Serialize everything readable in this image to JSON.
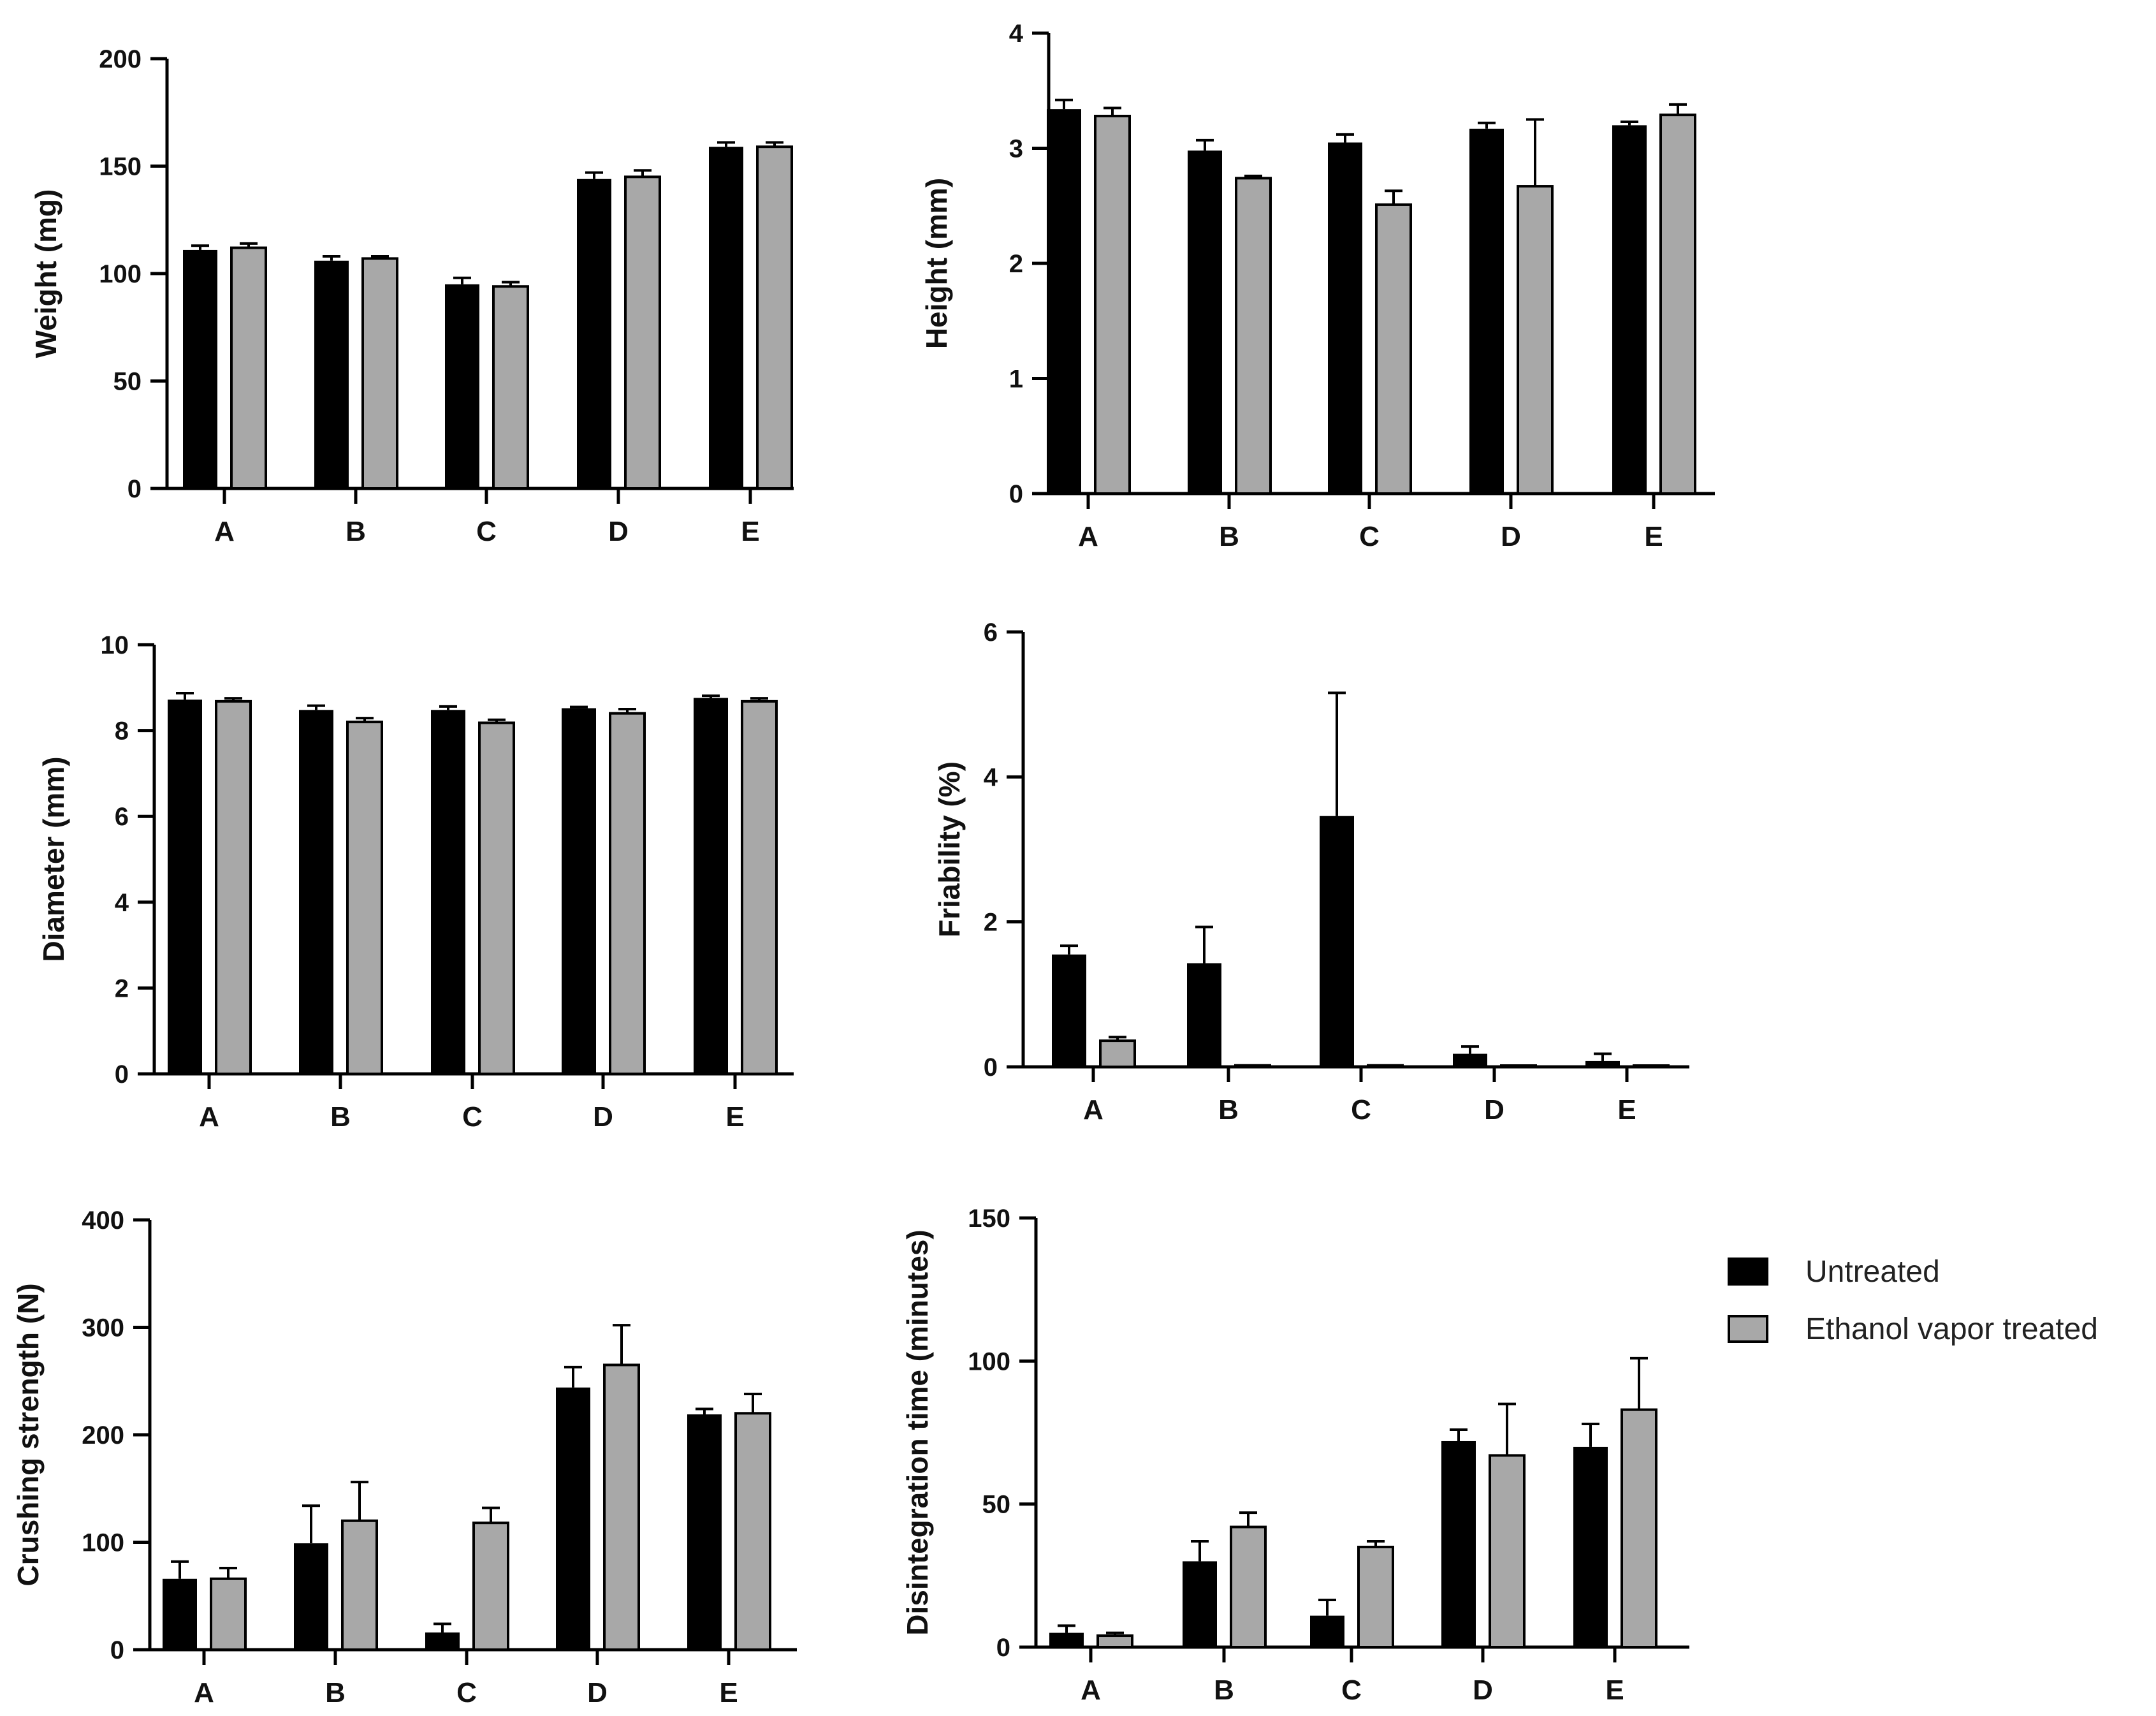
{
  "colors": {
    "untreated": "#000000",
    "treated": "#a8a8a8",
    "axis": "#000000"
  },
  "legend": {
    "untreated_label": "Untreated",
    "treated_label": "Ethanol vapor treated"
  },
  "chart_data": [
    {
      "type": "bar",
      "id": "weight",
      "ylabel": "Weight (mg)",
      "ylim": [
        0,
        200
      ],
      "yticks": [
        0,
        50,
        100,
        150,
        200
      ],
      "categories": [
        "A",
        "B",
        "C",
        "D",
        "E"
      ],
      "series": [
        {
          "name": "Untreated",
          "values": [
            111,
            106,
            95,
            144,
            159
          ],
          "errors": [
            2,
            2,
            3,
            3,
            2
          ]
        },
        {
          "name": "Ethanol vapor treated",
          "values": [
            112,
            107,
            94,
            145,
            159
          ],
          "errors": [
            2,
            1,
            2,
            3,
            2
          ]
        }
      ]
    },
    {
      "type": "bar",
      "id": "height",
      "ylabel": "Height (mm)",
      "ylim": [
        0,
        4
      ],
      "yticks": [
        0,
        1,
        2,
        3,
        4
      ],
      "categories": [
        "A",
        "B",
        "C",
        "D",
        "E"
      ],
      "series": [
        {
          "name": "Untreated",
          "values": [
            3.34,
            2.98,
            3.05,
            3.17,
            3.2
          ],
          "errors": [
            0.08,
            0.09,
            0.07,
            0.05,
            0.03
          ]
        },
        {
          "name": "Ethanol vapor treated",
          "values": [
            3.28,
            2.74,
            2.51,
            2.67,
            3.29
          ],
          "errors": [
            0.07,
            0.02,
            0.12,
            0.58,
            0.09
          ]
        }
      ]
    },
    {
      "type": "bar",
      "id": "diameter",
      "ylabel": "Diameter (mm)",
      "ylim": [
        0,
        10
      ],
      "yticks": [
        0,
        2,
        4,
        6,
        8,
        10
      ],
      "categories": [
        "A",
        "B",
        "C",
        "D",
        "E"
      ],
      "series": [
        {
          "name": "Untreated",
          "values": [
            8.72,
            8.48,
            8.48,
            8.52,
            8.76
          ],
          "errors": [
            0.15,
            0.1,
            0.08,
            0.03,
            0.05
          ]
        },
        {
          "name": "Ethanol vapor treated",
          "values": [
            8.68,
            8.2,
            8.18,
            8.4,
            8.68
          ],
          "errors": [
            0.07,
            0.09,
            0.07,
            0.1,
            0.07
          ]
        }
      ]
    },
    {
      "type": "bar",
      "id": "friability",
      "ylabel": "Friability (%)",
      "ylim": [
        0,
        6
      ],
      "yticks": [
        0,
        2,
        4,
        6
      ],
      "categories": [
        "A",
        "B",
        "C",
        "D",
        "E"
      ],
      "series": [
        {
          "name": "Untreated",
          "values": [
            1.55,
            1.43,
            3.46,
            0.18,
            0.08
          ],
          "errors": [
            0.12,
            0.5,
            1.7,
            0.1,
            0.1
          ]
        },
        {
          "name": "Ethanol vapor treated",
          "values": [
            0.36,
            0.02,
            0.02,
            0.01,
            0.01
          ],
          "errors": [
            0.05,
            0,
            0,
            0,
            0
          ]
        }
      ]
    },
    {
      "type": "bar",
      "id": "crushing",
      "ylabel": "Crushing strength (N)",
      "ylim": [
        0,
        400
      ],
      "yticks": [
        0,
        100,
        200,
        300,
        400
      ],
      "categories": [
        "A",
        "B",
        "C",
        "D",
        "E"
      ],
      "series": [
        {
          "name": "Untreated",
          "values": [
            66,
            99,
            16,
            244,
            219
          ],
          "errors": [
            16,
            35,
            8,
            19,
            5
          ]
        },
        {
          "name": "Ethanol vapor treated",
          "values": [
            66,
            120,
            118,
            265,
            220
          ],
          "errors": [
            10,
            36,
            14,
            37,
            18
          ]
        }
      ]
    },
    {
      "type": "bar",
      "id": "disintegration",
      "ylabel": "Disintegration time  (minutes)",
      "ylim": [
        0,
        150
      ],
      "yticks": [
        0,
        50,
        100,
        150
      ],
      "categories": [
        "A",
        "B",
        "C",
        "D",
        "E"
      ],
      "series": [
        {
          "name": "Untreated",
          "values": [
            5,
            30,
            11,
            72,
            70
          ],
          "errors": [
            2.5,
            7,
            5.5,
            4,
            8
          ]
        },
        {
          "name": "Ethanol vapor treated",
          "values": [
            4,
            42,
            35,
            67,
            83
          ],
          "errors": [
            1,
            5,
            2,
            18,
            18
          ]
        }
      ]
    }
  ]
}
